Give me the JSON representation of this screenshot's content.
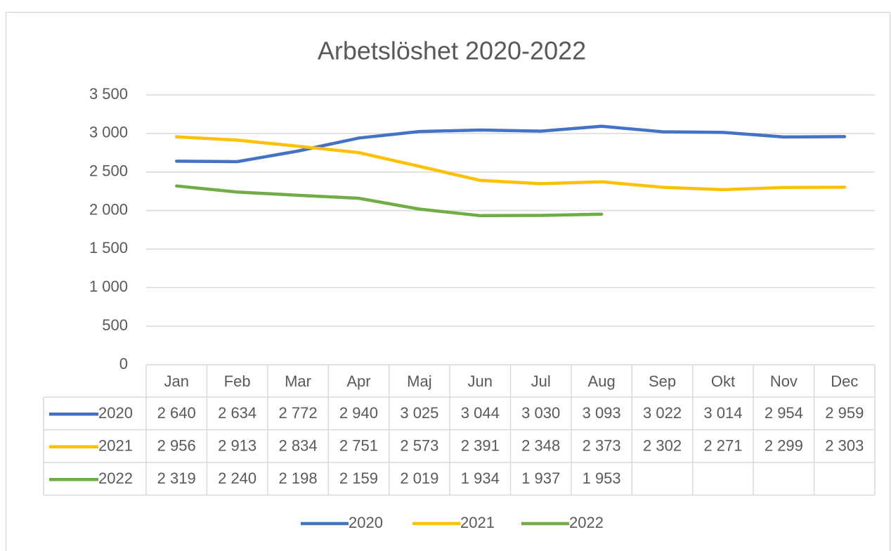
{
  "chart_data": {
    "type": "line",
    "title": "Arbetslöshet 2020-2022",
    "categories": [
      "Jan",
      "Feb",
      "Mar",
      "Apr",
      "Maj",
      "Jun",
      "Jul",
      "Aug",
      "Sep",
      "Okt",
      "Nov",
      "Dec"
    ],
    "series": [
      {
        "name": "2020",
        "color": "#4472c4",
        "values": [
          2640,
          2634,
          2772,
          2940,
          3025,
          3044,
          3030,
          3093,
          3022,
          3014,
          2954,
          2959
        ],
        "value_labels": [
          "2 640",
          "2 634",
          "2 772",
          "2 940",
          "3 025",
          "3 044",
          "3 030",
          "3 093",
          "3 022",
          "3 014",
          "2 954",
          "2 959"
        ]
      },
      {
        "name": "2021",
        "color": "#ffc000",
        "values": [
          2956,
          2913,
          2834,
          2751,
          2573,
          2391,
          2348,
          2373,
          2302,
          2271,
          2299,
          2303
        ],
        "value_labels": [
          "2 956",
          "2 913",
          "2 834",
          "2 751",
          "2 573",
          "2 391",
          "2 348",
          "2 373",
          "2 302",
          "2 271",
          "2 299",
          "2 303"
        ]
      },
      {
        "name": "2022",
        "color": "#70ad47",
        "values": [
          2319,
          2240,
          2198,
          2159,
          2019,
          1934,
          1937,
          1953,
          null,
          null,
          null,
          null
        ],
        "value_labels": [
          "2 319",
          "2 240",
          "2 198",
          "2 159",
          "2 019",
          "1 934",
          "1 937",
          "1 953",
          null,
          null,
          null,
          null
        ]
      }
    ],
    "ylim": [
      0,
      3500
    ],
    "yticks": [
      0,
      500,
      {
        "value": 1000,
        "label": "1 000"
      },
      {
        "value": 1500,
        "label": "1 500"
      },
      {
        "value": 2000,
        "label": "2 000"
      },
      {
        "value": 2500,
        "label": "2 500"
      },
      {
        "value": 3000,
        "label": "3 000"
      },
      {
        "value": 3500,
        "label": "3 500"
      }
    ],
    "grid": true,
    "legend": "bottom",
    "data_table": true
  }
}
